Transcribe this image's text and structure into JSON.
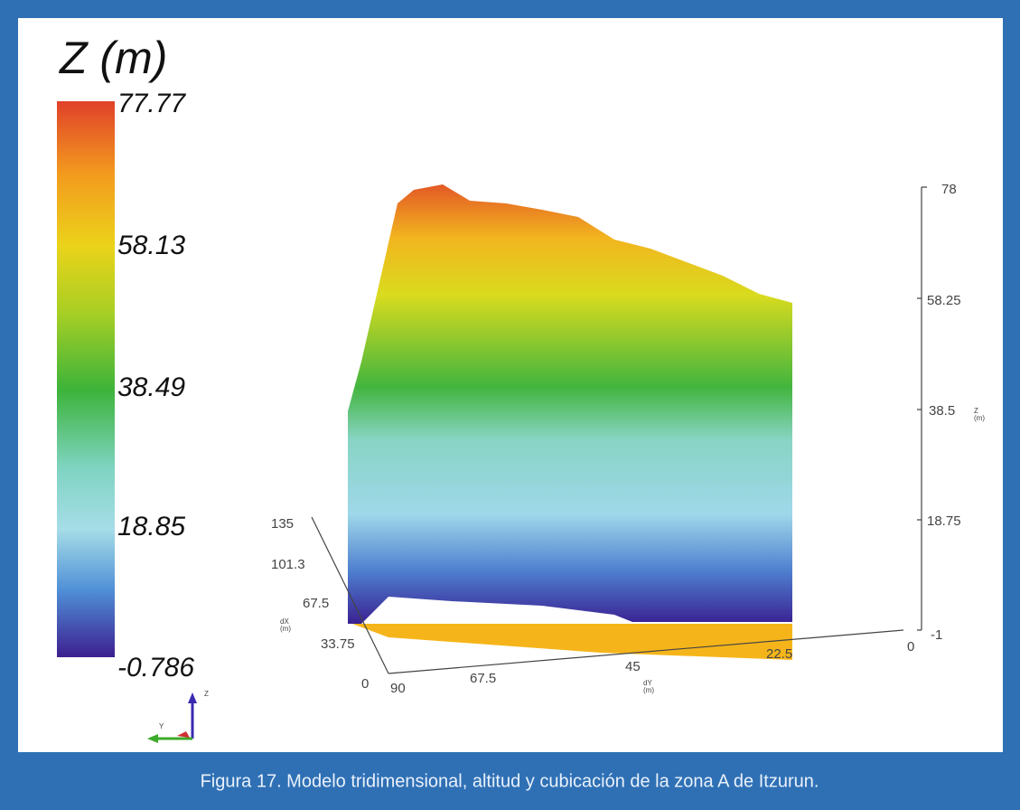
{
  "colorbar": {
    "title": "Z (m)",
    "labels": [
      "77.77",
      "58.13",
      "38.49",
      "18.85",
      "-0.786"
    ]
  },
  "z_axis": {
    "ticks": [
      "78",
      "58.25",
      "38.5",
      "18.75",
      "-1"
    ],
    "label": "Z\n(m)"
  },
  "y_axis": {
    "ticks": [
      "0",
      "22.5",
      "45",
      "67.5",
      "90"
    ],
    "label": "dY\n(m)"
  },
  "x_axis": {
    "ticks": [
      "135",
      "101.3",
      "67.5",
      "33.75",
      "0"
    ],
    "label": "dX\n(m)"
  },
  "triad": {
    "z": "Z",
    "y": "Y"
  },
  "caption": "Figura 17. Modelo tridimensional, altitud y cubicación de la zona A de Itzurun."
}
